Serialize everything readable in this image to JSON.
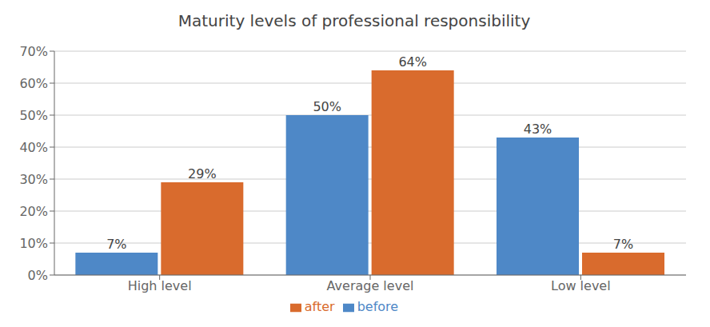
{
  "chart_data": {
    "type": "bar",
    "title": "Maturity levels of professional responsibility",
    "categories": [
      "High level",
      "Average level",
      "Low level"
    ],
    "series": [
      {
        "name": "before",
        "color": "#4E88C7",
        "values": [
          7,
          50,
          43
        ],
        "value_labels": [
          "7%",
          "50%",
          "43%"
        ]
      },
      {
        "name": "after",
        "color": "#D96B2D",
        "values": [
          29,
          64,
          7
        ],
        "value_labels": [
          "29%",
          "64%",
          "7%"
        ]
      }
    ],
    "ylim": [
      0,
      70
    ],
    "yticks": [
      {
        "value": 0,
        "label": "0%"
      },
      {
        "value": 10,
        "label": "10%"
      },
      {
        "value": 20,
        "label": "20%"
      },
      {
        "value": 30,
        "label": "30%"
      },
      {
        "value": 40,
        "label": "40%"
      },
      {
        "value": 50,
        "label": "50%"
      },
      {
        "value": 60,
        "label": "60%"
      },
      {
        "value": 70,
        "label": "70%"
      }
    ],
    "grid": true,
    "legend": "bottom",
    "data_labels": true
  }
}
